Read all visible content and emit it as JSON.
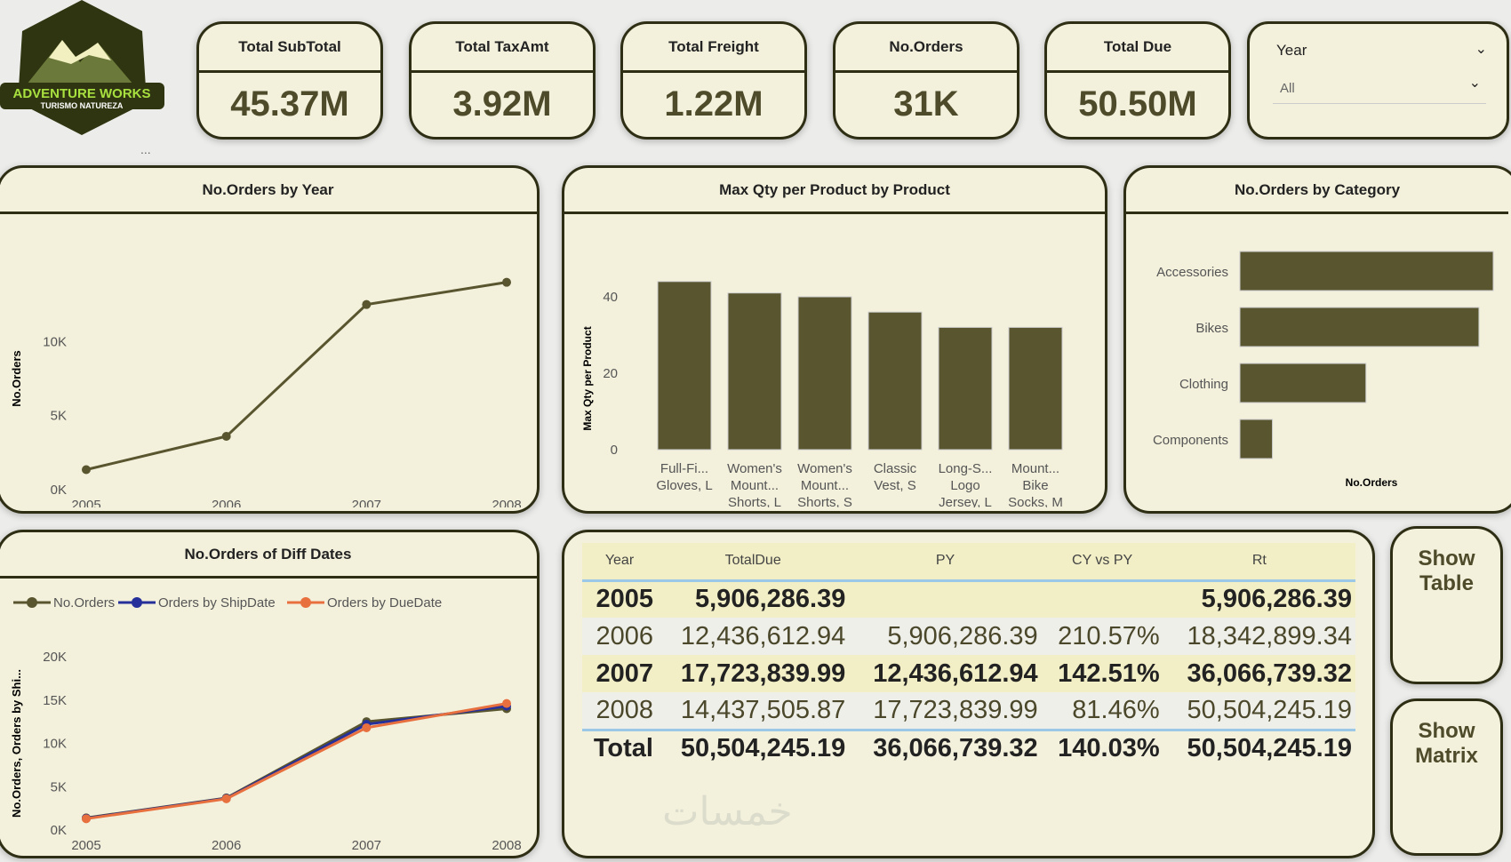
{
  "logo": {
    "line1": "ADVENTURE WORKS",
    "line2": "TURISMO NATUREZA"
  },
  "more_label": "...",
  "kpis": [
    {
      "title": "Total SubTotal",
      "value": "45.37M"
    },
    {
      "title": "Total TaxAmt",
      "value": "3.92M"
    },
    {
      "title": "Total Freight",
      "value": "1.22M"
    },
    {
      "title": "No.Orders",
      "value": "31K"
    },
    {
      "title": "Total Due",
      "value": "50.50M"
    }
  ],
  "slicer": {
    "label": "Year",
    "value": "All"
  },
  "buttons": {
    "show_table": "Show Table",
    "show_matrix": "Show Matrix"
  },
  "watermark": "خمسات",
  "colors": {
    "olive": "#58552f",
    "blue": "#26309a",
    "orange": "#e8703f",
    "panel": "#f3f1dc",
    "border": "#2e2e14"
  },
  "chart_data": [
    {
      "type": "line",
      "title": "No.Orders by Year",
      "xlabel": "",
      "ylabel": "No.Orders",
      "categories": [
        "2005",
        "2006",
        "2007",
        "2008"
      ],
      "values": [
        1350,
        3600,
        12500,
        14000
      ],
      "yticks": [
        "0K",
        "5K",
        "10K"
      ],
      "ylim": [
        0,
        15000
      ]
    },
    {
      "type": "bar",
      "title": "Max Qty per Product by Product",
      "ylabel": "Max Qty per Product",
      "categories": [
        "Full-Fi... Gloves, L",
        "Women's Mount... Shorts, L",
        "Women's Mount... Shorts, S",
        "Classic Vest, S",
        "Long-S... Logo Jersey, L",
        "Mount... Bike Socks, M"
      ],
      "values": [
        44,
        41,
        40,
        36,
        32,
        32
      ],
      "yticks": [
        "0",
        "20",
        "40"
      ],
      "ylim": [
        0,
        45
      ]
    },
    {
      "type": "bar",
      "orientation": "horizontal",
      "title": "No.Orders by Category",
      "xlabel": "No.Orders",
      "categories": [
        "Accessories",
        "Bikes",
        "Clothing",
        "Components"
      ],
      "values": [
        19500,
        18400,
        9700,
        2500
      ]
    },
    {
      "type": "line",
      "title": "No.Orders of Diff Dates",
      "ylabel": "No.Orders, Orders by Shi...",
      "legend": "top-left",
      "categories": [
        "2005",
        "2006",
        "2007",
        "2008"
      ],
      "yticks": [
        "0K",
        "5K",
        "10K",
        "15K",
        "20K"
      ],
      "ylim": [
        0,
        20000
      ],
      "series": [
        {
          "name": "No.Orders",
          "values": [
            1400,
            3700,
            12500,
            14000
          ]
        },
        {
          "name": "Orders by ShipDate",
          "values": [
            1350,
            3650,
            12200,
            14300
          ]
        },
        {
          "name": "Orders by DueDate",
          "values": [
            1300,
            3600,
            11800,
            14600
          ]
        }
      ]
    }
  ],
  "table": {
    "headers": [
      "Year",
      "TotalDue",
      "PY",
      "CY vs PY",
      "Rt"
    ],
    "rows": [
      [
        "2005",
        "5,906,286.39",
        "",
        "",
        "5,906,286.39"
      ],
      [
        "2006",
        "12,436,612.94",
        "5,906,286.39",
        "210.57%",
        "18,342,899.34"
      ],
      [
        "2007",
        "17,723,839.99",
        "12,436,612.94",
        "142.51%",
        "36,066,739.32"
      ],
      [
        "2008",
        "14,437,505.87",
        "17,723,839.99",
        "81.46%",
        "50,504,245.19"
      ]
    ],
    "total": [
      "Total",
      "50,504,245.19",
      "36,066,739.32",
      "140.03%",
      "50,504,245.19"
    ]
  }
}
